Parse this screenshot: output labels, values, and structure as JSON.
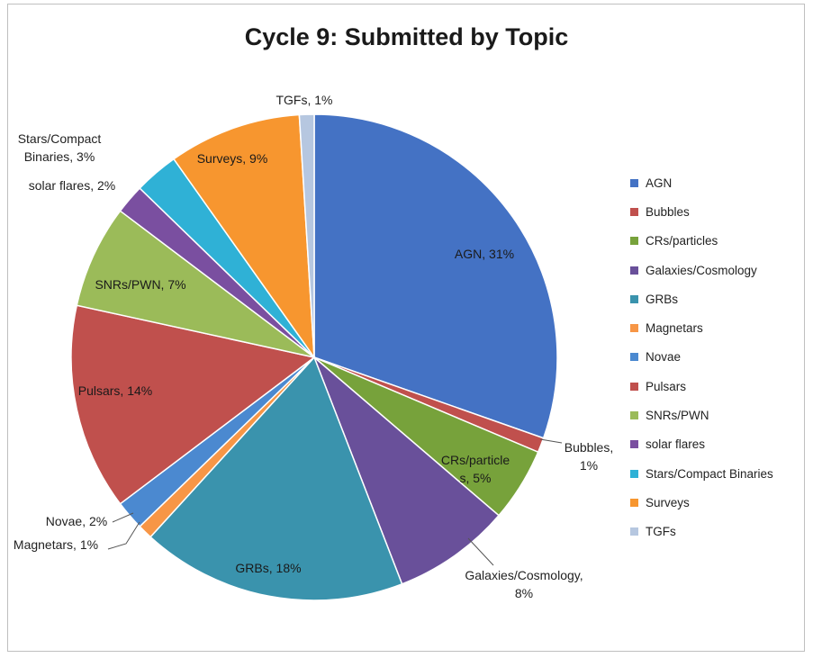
{
  "chart_data": {
    "type": "pie",
    "title": "Cycle 9: Submitted by Topic",
    "start_angle_deg": 0,
    "direction": "clockwise",
    "slices": [
      {
        "name": "AGN",
        "value": 31,
        "color": "#4472c4",
        "label_lines": [
          "AGN, 31%"
        ],
        "label_inside": true
      },
      {
        "name": "Bubbles",
        "value": 1,
        "color": "#c0504d",
        "label_lines": [
          "Bubbles,",
          "1%"
        ],
        "label_inside": false
      },
      {
        "name": "CRs/particles",
        "value": 5,
        "color": "#77a23b",
        "label_lines": [
          "CRs/particle",
          "s, 5%"
        ],
        "label_inside": true
      },
      {
        "name": "Galaxies/Cosmology",
        "value": 8,
        "color": "#69509a",
        "label_lines": [
          "Galaxies/Cosmology,",
          "8%"
        ],
        "label_inside": false
      },
      {
        "name": "GRBs",
        "value": 18,
        "color": "#3a93ad",
        "label_lines": [
          "GRBs, 18%"
        ],
        "label_inside": true
      },
      {
        "name": "Magnetars",
        "value": 1,
        "color": "#f79646",
        "label_lines": [
          "Magnetars, 1%"
        ],
        "label_inside": false
      },
      {
        "name": "Novae",
        "value": 2,
        "color": "#4b89d0",
        "label_lines": [
          "Novae, 2%"
        ],
        "label_inside": false
      },
      {
        "name": "Pulsars",
        "value": 14,
        "color": "#c0504d",
        "label_lines": [
          "Pulsars, 14%"
        ],
        "label_inside": true
      },
      {
        "name": "SNRs/PWN",
        "value": 7,
        "color": "#9bbb59",
        "label_lines": [
          "SNRs/PWN, 7%"
        ],
        "label_inside": true
      },
      {
        "name": "solar flares",
        "value": 2,
        "color": "#7a4fa0",
        "label_lines": [
          "solar flares, 2%"
        ],
        "label_inside": false
      },
      {
        "name": "Stars/Compact Binaries",
        "value": 3,
        "color": "#2fb1d6",
        "label_lines": [
          "Stars/Compact",
          "Binaries, 3%"
        ],
        "label_inside": false
      },
      {
        "name": "Surveys",
        "value": 9,
        "color": "#f7962f",
        "label_lines": [
          "Surveys, 9%"
        ],
        "label_inside": true
      },
      {
        "name": "TGFs",
        "value": 1,
        "color": "#b6c7e0",
        "label_lines": [
          "TGFs, 1%"
        ],
        "label_inside": false
      }
    ],
    "legend_position": "right"
  }
}
